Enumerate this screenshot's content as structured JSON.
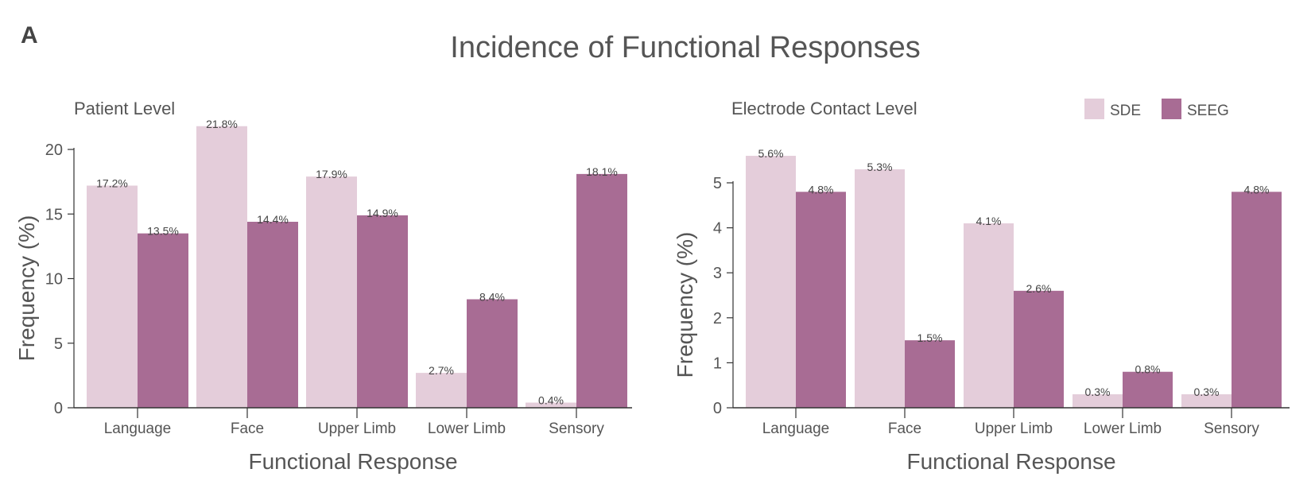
{
  "panel_label": "A",
  "title": "Incidence of Functional Responses",
  "legend": {
    "placement": "top-right",
    "items": [
      {
        "name": "SDE",
        "color": "#e4cdda"
      },
      {
        "name": "SEEG",
        "color": "#a86c94"
      }
    ]
  },
  "chart_data": [
    {
      "type": "bar",
      "title": "Patient Level",
      "xlabel": "Functional Response",
      "ylabel": "Frequency (%)",
      "ylim": [
        0,
        22
      ],
      "yticks": [
        0,
        5,
        10,
        15,
        20
      ],
      "grid": false,
      "categories": [
        "Language",
        "Face",
        "Upper Limb",
        "Lower Limb",
        "Sensory"
      ],
      "series": [
        {
          "name": "SDE",
          "values": [
            17.2,
            21.8,
            17.9,
            2.7,
            0.4
          ],
          "labels": [
            "17.2%",
            "21.8%",
            "17.9%",
            "2.7%",
            "0.4%"
          ]
        },
        {
          "name": "SEEG",
          "values": [
            13.5,
            14.4,
            14.9,
            8.4,
            18.1
          ],
          "labels": [
            "13.5%",
            "14.4%",
            "14.9%",
            "8.4%",
            "18.1%"
          ]
        }
      ]
    },
    {
      "type": "bar",
      "title": "Electrode Contact Level",
      "xlabel": "Functional Response",
      "ylabel": "Frequency (%)",
      "ylim": [
        0,
        5.6
      ],
      "yticks": [
        0,
        1,
        2,
        3,
        4,
        5
      ],
      "grid": false,
      "categories": [
        "Language",
        "Face",
        "Upper Limb",
        "Lower Limb",
        "Sensory"
      ],
      "series": [
        {
          "name": "SDE",
          "values": [
            5.6,
            5.3,
            4.1,
            0.3,
            0.3
          ],
          "labels": [
            "5.6%",
            "5.3%",
            "4.1%",
            "0.3%",
            "0.3%"
          ]
        },
        {
          "name": "SEEG",
          "values": [
            4.8,
            1.5,
            2.6,
            0.8,
            4.8
          ],
          "labels": [
            "4.8%",
            "1.5%",
            "2.6%",
            "0.8%",
            "4.8%"
          ]
        }
      ]
    }
  ]
}
